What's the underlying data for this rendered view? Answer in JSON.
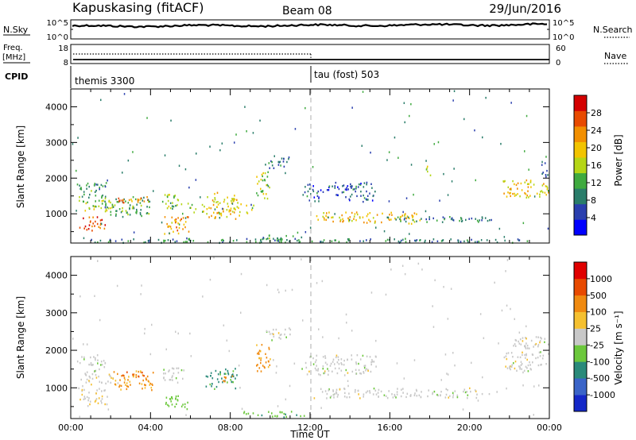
{
  "header": {
    "station": "Kapuskasing (fitACF)",
    "beam": "Beam 08",
    "date": "29/Jun/2016"
  },
  "strip_panels": {
    "noise": {
      "left_label": "N.Sky",
      "right_label": "N.Search",
      "left_ticks": [
        "10^5",
        "10^0"
      ],
      "right_ticks": [
        "10^5",
        "10^0"
      ]
    },
    "freq": {
      "left_label_1": "Freq.",
      "left_label_2": "[MHz]",
      "left_ticks": [
        "18",
        "8"
      ],
      "right_label": "Nave",
      "right_ticks": [
        "60",
        "0"
      ]
    },
    "cpid": {
      "label": "CPID",
      "modes": [
        "themis 3300",
        "tau (fost) 503"
      ],
      "mode_change_time": "12:00"
    }
  },
  "chart_data": [
    {
      "type": "heatmap",
      "name": "power",
      "ylabel": "Slant Range [km]",
      "ylim": [
        180,
        4500
      ],
      "yticks": [
        1000,
        2000,
        3000,
        4000
      ],
      "xlim": [
        0,
        24
      ],
      "colorbar": {
        "label": "Power [dB]",
        "ticks": [
          "4",
          "8",
          "12",
          "16",
          "20",
          "24",
          "28"
        ],
        "tick_values": [
          4,
          8,
          12,
          16,
          20,
          24,
          28
        ],
        "range": [
          0,
          32
        ],
        "colors": [
          "#0000ff",
          "#2a3fae",
          "#2a7d6a",
          "#3faa3f",
          "#b5d616",
          "#f2c400",
          "#f28f00",
          "#e84a00",
          "#d40000"
        ]
      },
      "regions": [
        {
          "t": [
            0.3,
            1.8
          ],
          "r": [
            500,
            950
          ],
          "v": 26
        },
        {
          "t": [
            0.3,
            2.5
          ],
          "r": [
            1050,
            1400
          ],
          "v": 16
        },
        {
          "t": [
            0.3,
            1.8
          ],
          "r": [
            1400,
            1900
          ],
          "v": 10
        },
        {
          "t": [
            1.5,
            4.2
          ],
          "r": [
            900,
            1500
          ],
          "v": 12
        },
        {
          "t": [
            2.3,
            3.9
          ],
          "r": [
            1200,
            1500
          ],
          "v": 24
        },
        {
          "t": [
            4.5,
            5.6
          ],
          "r": [
            1100,
            1600
          ],
          "v": 14
        },
        {
          "t": [
            4.6,
            6.0
          ],
          "r": [
            400,
            950
          ],
          "v": 22
        },
        {
          "t": [
            5.8,
            6.8
          ],
          "r": [
            1000,
            1300
          ],
          "v": 16
        },
        {
          "t": [
            6.6,
            8.5
          ],
          "r": [
            800,
            1600
          ],
          "v": 19
        },
        {
          "t": [
            8.0,
            9.2
          ],
          "r": [
            1000,
            1350
          ],
          "v": 18
        },
        {
          "t": [
            9.2,
            10.0
          ],
          "r": [
            1300,
            2200
          ],
          "v": 15
        },
        {
          "t": [
            9.7,
            11.0
          ],
          "r": [
            2250,
            2600
          ],
          "v": 8
        },
        {
          "t": [
            9.0,
            11.8
          ],
          "r": [
            200,
            420
          ],
          "v": 10
        },
        {
          "t": [
            11.5,
            15.5
          ],
          "r": [
            1300,
            1900
          ],
          "v": 7
        },
        {
          "t": [
            12.0,
            18.0
          ],
          "r": [
            700,
            1050
          ],
          "v": 20
        },
        {
          "t": [
            15.5,
            21.5
          ],
          "r": [
            750,
            950
          ],
          "v": 9
        },
        {
          "t": [
            17.6,
            18.1
          ],
          "r": [
            2050,
            2350
          ],
          "v": 14
        },
        {
          "t": [
            21.6,
            24.0
          ],
          "r": [
            1400,
            2000
          ],
          "v": 19
        },
        {
          "t": [
            23.3,
            24.0
          ],
          "r": [
            2000,
            2450
          ],
          "v": 8
        },
        {
          "t": [
            0.0,
            24.0
          ],
          "r": [
            180,
            300
          ],
          "v": 9
        }
      ]
    },
    {
      "type": "heatmap",
      "name": "velocity",
      "ylabel": "Slant Range [km]",
      "xlabel": "Time UT",
      "ylim": [
        180,
        4500
      ],
      "yticks": [
        1000,
        2000,
        3000,
        4000
      ],
      "xlim": [
        0,
        24
      ],
      "xticks": [
        "00:00",
        "04:00",
        "08:00",
        "12:00",
        "16:00",
        "20:00",
        "00:00"
      ],
      "colorbar": {
        "label": "Velocity [m s⁻¹]",
        "ticks": [
          "1000",
          "500",
          "100",
          "25",
          "-25",
          "-100",
          "-500",
          "-1000"
        ],
        "colors": [
          "#1428c8",
          "#3a64c8",
          "#2a8a7a",
          "#6cc83c",
          "#c8c8c8",
          "#f5c030",
          "#f08a10",
          "#e84a00",
          "#e00000"
        ]
      },
      "regions": [
        {
          "t": [
            0.3,
            2.0
          ],
          "r": [
            500,
            1000
          ],
          "v": -15
        },
        {
          "t": [
            0.3,
            2.5
          ],
          "r": [
            1050,
            1400
          ],
          "v": -10
        },
        {
          "t": [
            0.3,
            1.8
          ],
          "r": [
            1400,
            1900
          ],
          "v": 5
        },
        {
          "t": [
            2.0,
            4.2
          ],
          "r": [
            900,
            1500
          ],
          "v": -110
        },
        {
          "t": [
            2.5,
            3.9
          ],
          "r": [
            1200,
            1450
          ],
          "v": -520
        },
        {
          "t": [
            4.5,
            5.6
          ],
          "r": [
            1100,
            1600
          ],
          "v": 10
        },
        {
          "t": [
            4.6,
            6.0
          ],
          "r": [
            400,
            800
          ],
          "v": 60
        },
        {
          "t": [
            6.7,
            8.4
          ],
          "r": [
            950,
            1550
          ],
          "v": 120
        },
        {
          "t": [
            7.5,
            8.3
          ],
          "r": [
            1150,
            1350
          ],
          "v": -300
        },
        {
          "t": [
            9.2,
            10.0
          ],
          "r": [
            1300,
            2200
          ],
          "v": -120
        },
        {
          "t": [
            9.7,
            11.0
          ],
          "r": [
            2250,
            2600
          ],
          "v": 0
        },
        {
          "t": [
            8.5,
            11.8
          ],
          "r": [
            200,
            400
          ],
          "v": 80
        },
        {
          "t": [
            11.5,
            15.5
          ],
          "r": [
            1300,
            1900
          ],
          "v": 0
        },
        {
          "t": [
            12.0,
            21.5
          ],
          "r": [
            700,
            1000
          ],
          "v": 0
        },
        {
          "t": [
            21.6,
            24.0
          ],
          "r": [
            1400,
            2000
          ],
          "v": 0
        },
        {
          "t": [
            22.0,
            24.0
          ],
          "r": [
            2000,
            2400
          ],
          "v": 0
        }
      ]
    }
  ]
}
